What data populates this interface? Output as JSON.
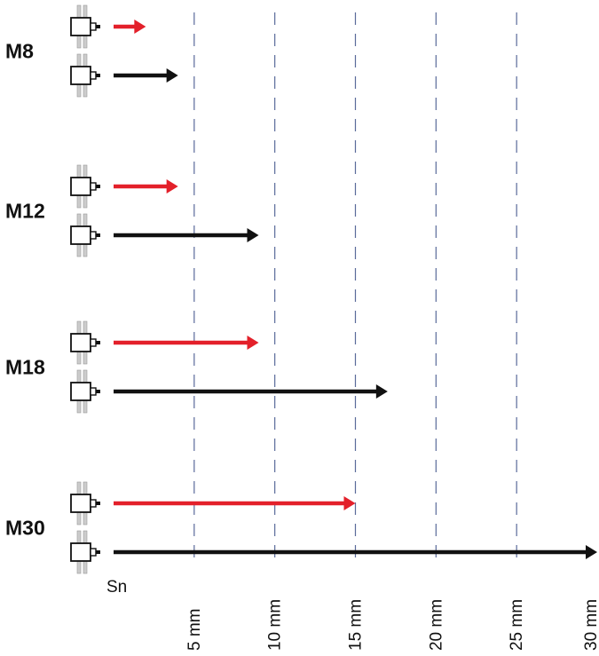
{
  "chart_data": {
    "type": "bar",
    "orientation": "horizontal",
    "origin_label": "Sn",
    "x_ticks": [
      5,
      10,
      15,
      20,
      25,
      30
    ],
    "x_tick_labels": [
      "5 mm",
      "10 mm",
      "15 mm",
      "20 mm",
      "25 mm",
      "30 mm"
    ],
    "xlim": [
      0,
      30
    ],
    "grid": "vertical dashed",
    "colors": {
      "red": "#e3202a",
      "black": "#111111",
      "grid": "#5a6a9a"
    },
    "groups": [
      {
        "label": "M8",
        "red_value": 2,
        "black_value": 4
      },
      {
        "label": "M12",
        "red_value": 4,
        "black_value": 9
      },
      {
        "label": "M18",
        "red_value": 9,
        "black_value": 17
      },
      {
        "label": "M30",
        "red_value": 15,
        "black_value": 30
      }
    ]
  }
}
